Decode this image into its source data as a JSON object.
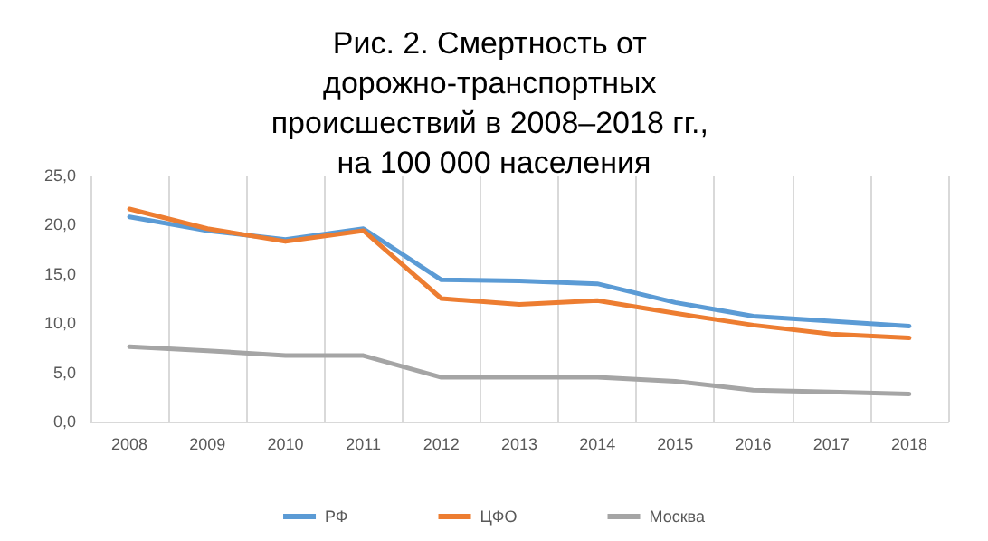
{
  "chart_data": {
    "type": "line",
    "title": "Рис. 2. Смертность от дорожно-транспортных происшествий в 2008–2018 гг., на 100 000 населения",
    "categories": [
      "2008",
      "2009",
      "2010",
      "2011",
      "2012",
      "2013",
      "2014",
      "2015",
      "2016",
      "2017",
      "2018"
    ],
    "series": [
      {
        "name": "РФ",
        "color": "#5b9bd5",
        "values": [
          20.8,
          19.4,
          18.5,
          19.6,
          14.4,
          14.3,
          14.0,
          12.1,
          10.7,
          10.2,
          9.7
        ]
      },
      {
        "name": "ЦФО",
        "color": "#ed7d31",
        "values": [
          21.6,
          19.6,
          18.3,
          19.4,
          12.5,
          11.9,
          12.3,
          11.0,
          9.8,
          8.9,
          8.5
        ]
      },
      {
        "name": "Москва",
        "color": "#a5a5a5",
        "values": [
          7.6,
          7.2,
          6.7,
          6.7,
          4.5,
          4.5,
          4.5,
          4.1,
          3.2,
          3.0,
          2.8
        ]
      }
    ],
    "ylim": [
      0,
      25
    ],
    "yticks": [
      {
        "value": 0,
        "label": "0,0"
      },
      {
        "value": 5,
        "label": "5,0"
      },
      {
        "value": 10,
        "label": "10,0"
      },
      {
        "value": 15,
        "label": "15,0"
      },
      {
        "value": 20,
        "label": "20,0"
      },
      {
        "value": 25,
        "label": "25,0"
      }
    ],
    "grid": "x",
    "legend": "bottom",
    "marker": "none",
    "line_style": "solid"
  }
}
